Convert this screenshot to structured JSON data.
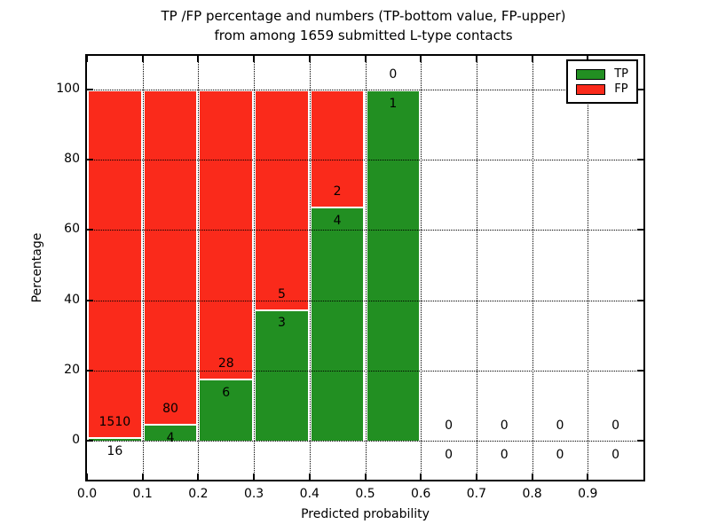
{
  "chart_data": {
    "type": "bar",
    "subtype": "stacked-percentage-histogram",
    "title_line1": "TP /FP percentage and numbers (TP-bottom value, FP-upper)",
    "title_line2": "from among 1659 submitted L-type contacts",
    "total_submitted_contacts": 1659,
    "xlabel": "Predicted probability",
    "ylabel": "Percentage",
    "xlim": [
      0.0,
      1.0
    ],
    "ylim": [
      -11,
      109.5
    ],
    "grid": true,
    "xticks": [
      {
        "value": 0.0,
        "label": "0.0"
      },
      {
        "value": 0.1,
        "label": "0.1"
      },
      {
        "value": 0.2,
        "label": "0.2"
      },
      {
        "value": 0.3,
        "label": "0.3"
      },
      {
        "value": 0.4,
        "label": "0.4"
      },
      {
        "value": 0.5,
        "label": "0.5"
      },
      {
        "value": 0.6,
        "label": "0.6"
      },
      {
        "value": 0.7,
        "label": "0.7"
      },
      {
        "value": 0.8,
        "label": "0.8"
      },
      {
        "value": 0.9,
        "label": "0.9"
      }
    ],
    "yticks": [
      {
        "value": 0,
        "label": "0"
      },
      {
        "value": 20,
        "label": "20"
      },
      {
        "value": 40,
        "label": "40"
      },
      {
        "value": 60,
        "label": "60"
      },
      {
        "value": 80,
        "label": "80"
      },
      {
        "value": 100,
        "label": "100"
      }
    ],
    "bins": [
      {
        "x0": 0.0,
        "x1": 0.1,
        "tp": 16,
        "fp": 1510,
        "tp_pct": 1.05
      },
      {
        "x0": 0.1,
        "x1": 0.2,
        "tp": 4,
        "fp": 80,
        "tp_pct": 4.76
      },
      {
        "x0": 0.2,
        "x1": 0.3,
        "tp": 6,
        "fp": 28,
        "tp_pct": 17.65
      },
      {
        "x0": 0.3,
        "x1": 0.4,
        "tp": 3,
        "fp": 5,
        "tp_pct": 37.5
      },
      {
        "x0": 0.4,
        "x1": 0.5,
        "tp": 4,
        "fp": 2,
        "tp_pct": 66.67
      },
      {
        "x0": 0.5,
        "x1": 0.6,
        "tp": 1,
        "fp": 0,
        "tp_pct": 100.0
      },
      {
        "x0": 0.6,
        "x1": 0.7,
        "tp": 0,
        "fp": 0,
        "tp_pct": null
      },
      {
        "x0": 0.7,
        "x1": 0.8,
        "tp": 0,
        "fp": 0,
        "tp_pct": null
      },
      {
        "x0": 0.8,
        "x1": 0.9,
        "tp": 0,
        "fp": 0,
        "tp_pct": null
      },
      {
        "x0": 0.9,
        "x1": 1.0,
        "tp": 0,
        "fp": 0,
        "tp_pct": null
      }
    ],
    "legend": {
      "position": "upper right",
      "entries": [
        {
          "label": "TP",
          "color": "#228f22"
        },
        {
          "label": "FP",
          "color": "#fa2a1b"
        }
      ]
    },
    "colors": {
      "tp": "#228f22",
      "fp": "#fa2a1b",
      "bar_edge": "#ffffff",
      "grid": "#000000",
      "text": "#000000",
      "background": "#ffffff"
    }
  }
}
